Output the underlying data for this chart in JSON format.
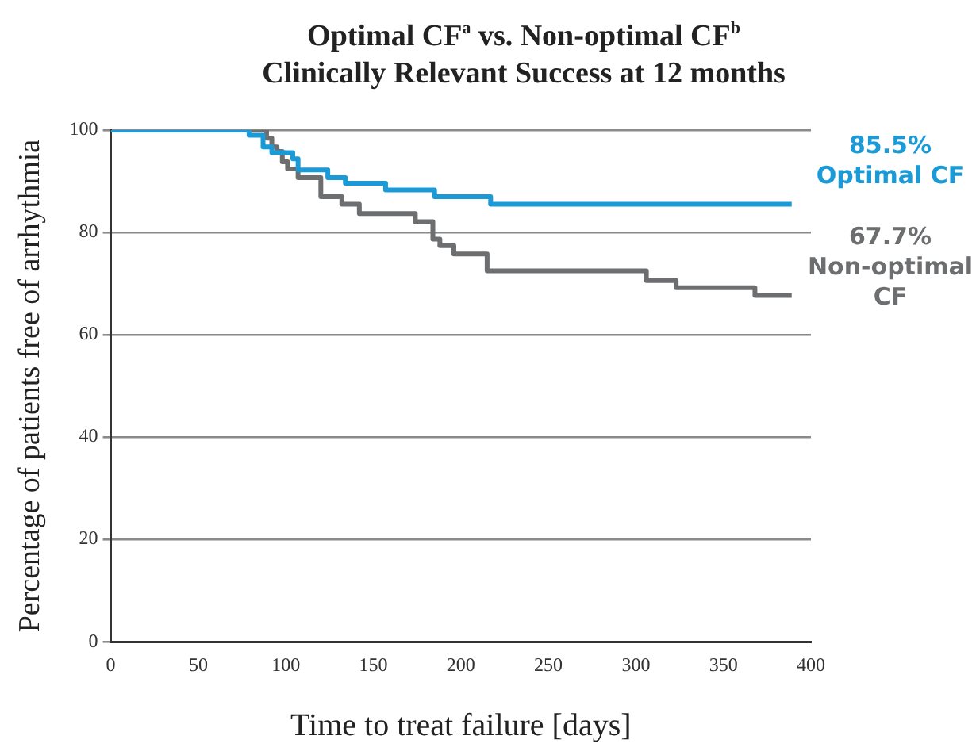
{
  "chart_data": {
    "type": "step",
    "title": "Optimal CF$^{a}$ vs. Non-optimal CF$^{b}$",
    "subtitle": "Clinically Relevant Success at 12 months",
    "xlabel": "Time to treat failure [days]",
    "ylabel": "Percentage of patients free of arrhythmia",
    "series": [
      {
        "name": "Optimal CF",
        "color": "#1a9bd7",
        "x": [
          0,
          79,
          87,
          92,
          104,
          107,
          124,
          134,
          157,
          185,
          217,
          389
        ],
        "values": [
          100,
          99,
          96.7,
          95.6,
          94.4,
          92.2,
          90.7,
          89.6,
          88.3,
          87,
          85.5,
          85.5
        ]
      },
      {
        "name": "Non-optimal CF",
        "color": "#6d6e70",
        "x": [
          0,
          89,
          92,
          95,
          98,
          101,
          107,
          120,
          132,
          142,
          174,
          184,
          188,
          196,
          215,
          306,
          323,
          368,
          389
        ],
        "values": [
          100,
          98.4,
          96.7,
          95.8,
          93.8,
          92.4,
          90.7,
          87,
          85.5,
          83.7,
          82.1,
          78.7,
          77.4,
          75.8,
          72.5,
          70.6,
          69.2,
          67.7,
          67.7
        ]
      }
    ],
    "annotations": [
      "85.5%",
      "67.7%"
    ],
    "xlim": [
      0,
      400
    ],
    "xticks": [
      0,
      50,
      100,
      150,
      200,
      250,
      300,
      350,
      400
    ],
    "ylim": [
      0,
      100
    ],
    "yticks": [
      0,
      20,
      40,
      60,
      80,
      100
    ],
    "grid": "y",
    "legend": false,
    "marker": "none",
    "line_style": "solid"
  }
}
